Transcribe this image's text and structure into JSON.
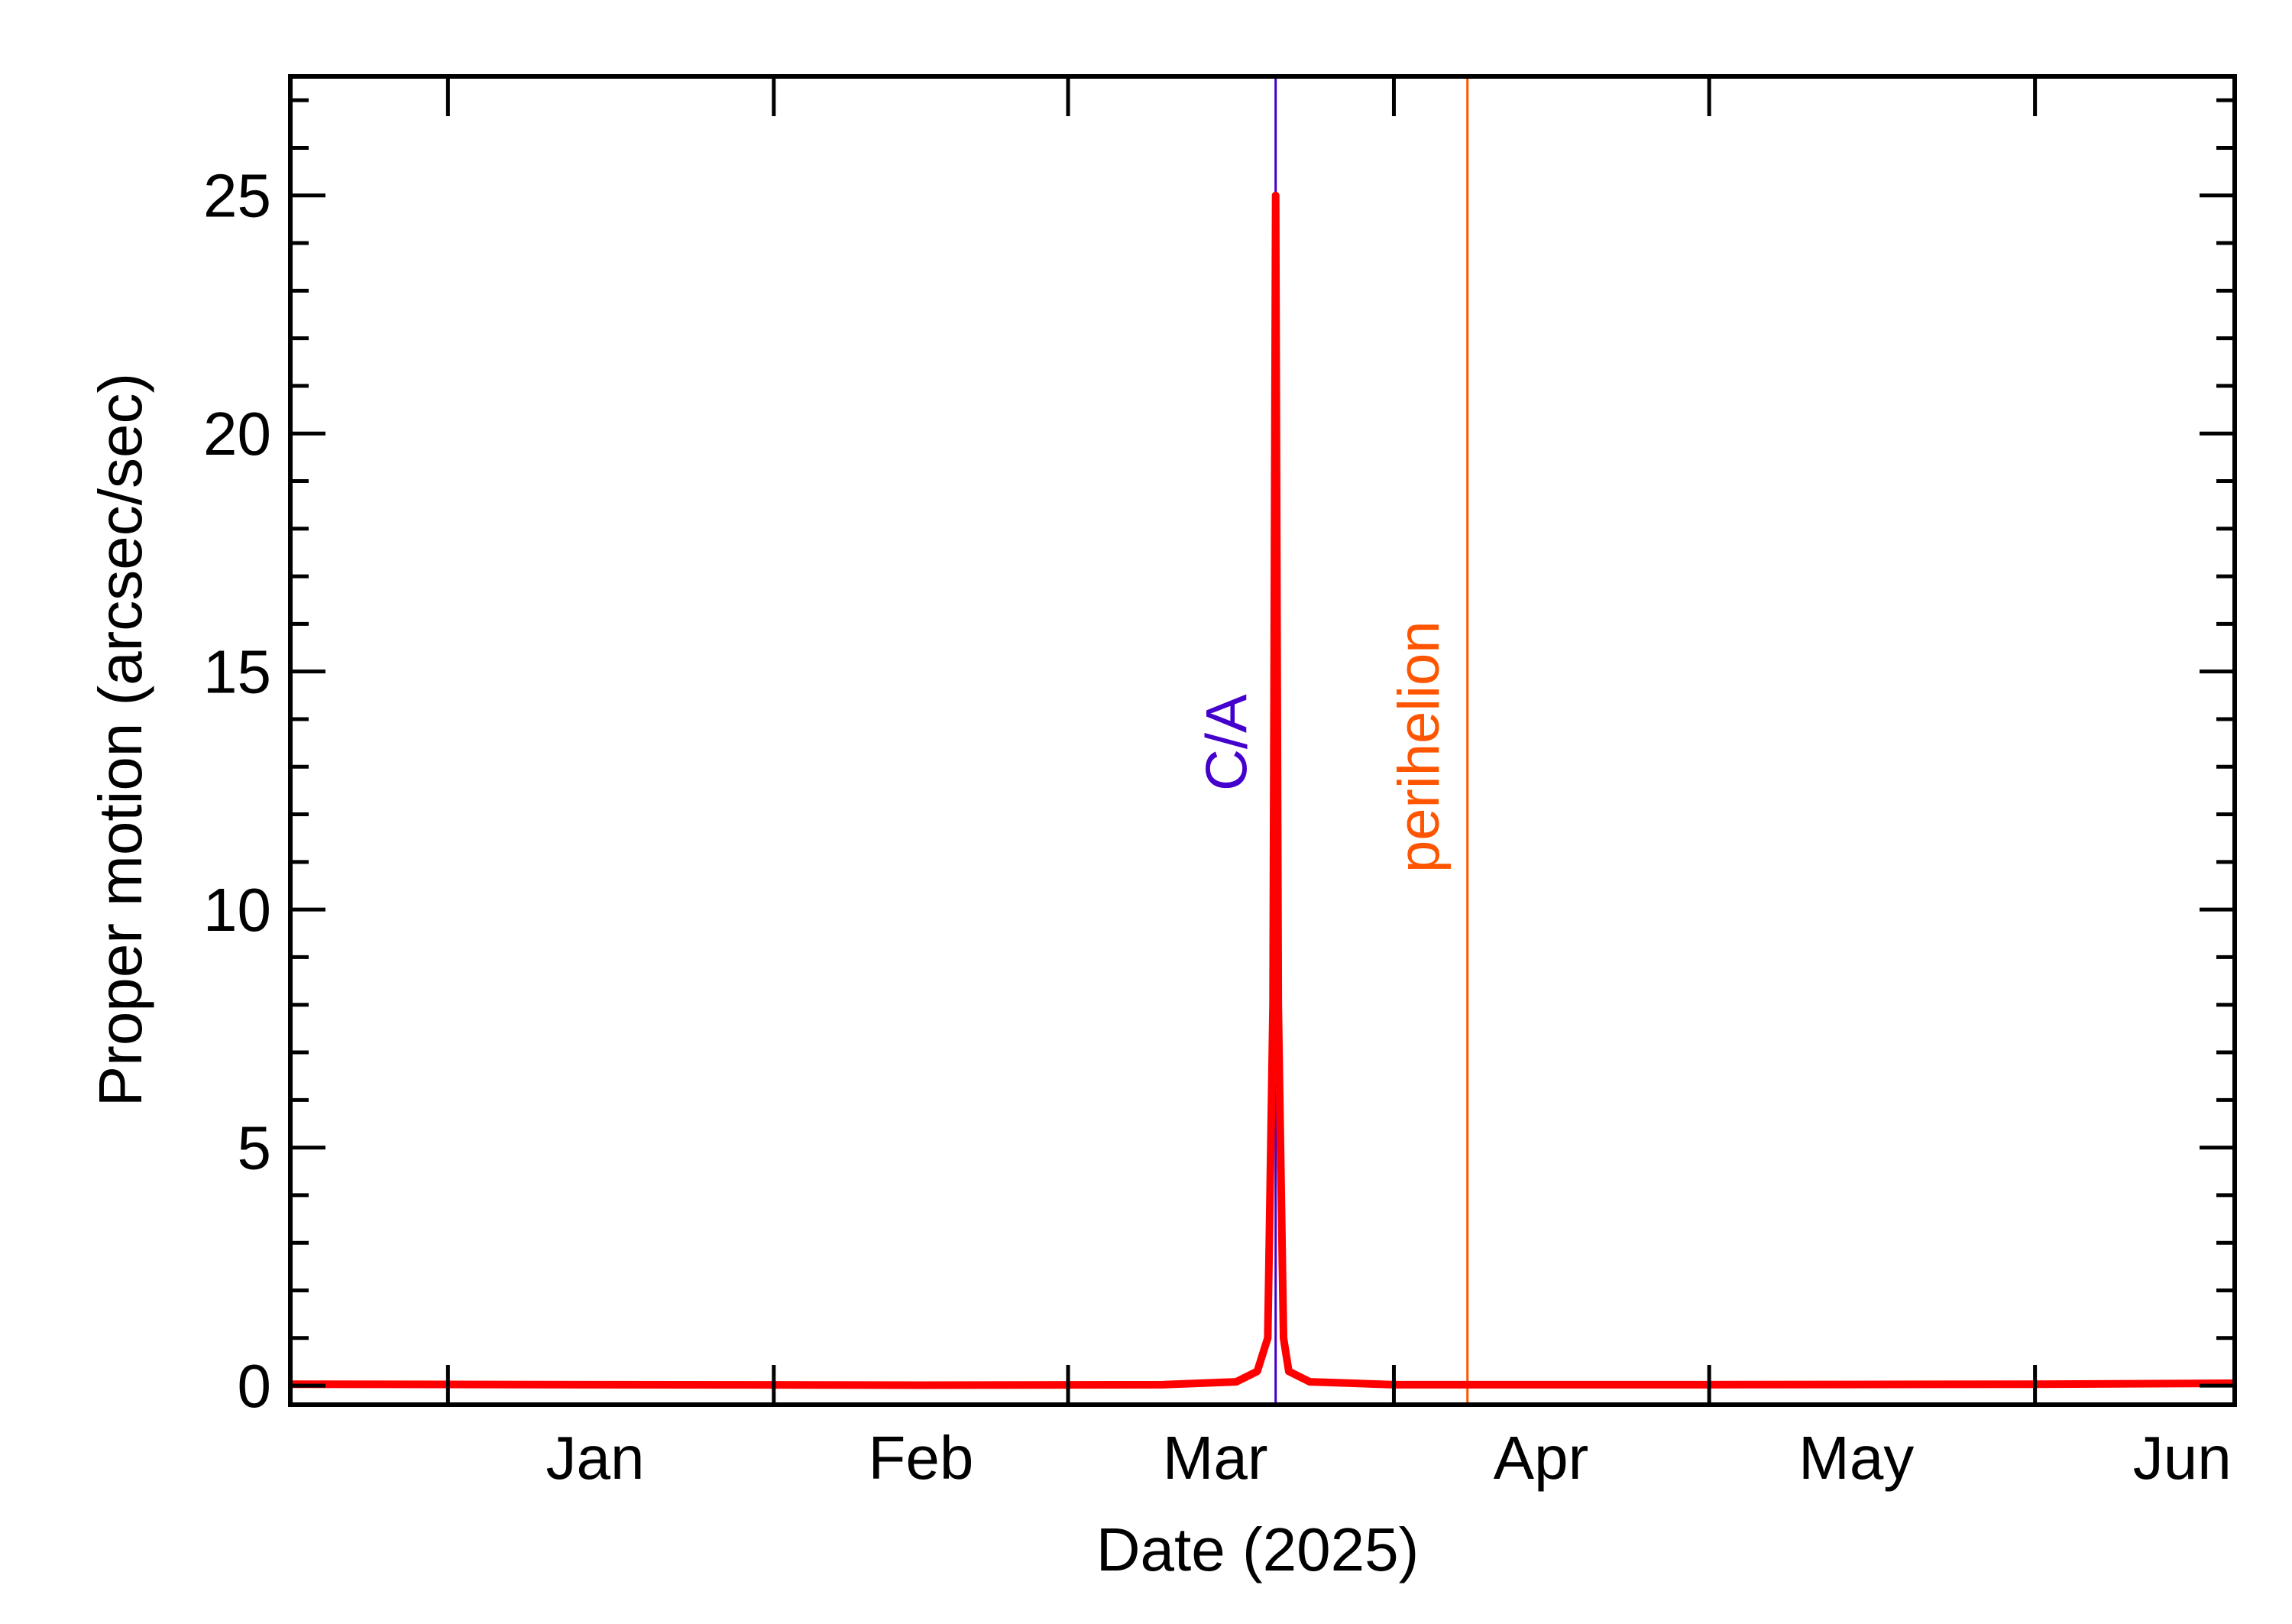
{
  "chart_data": {
    "type": "line",
    "xlabel": "Date (2025)",
    "ylabel": "Proper motion (arcsec/sec)",
    "x_range": [
      "2024-12-17",
      "2025-06-20"
    ],
    "ylim": [
      -0.4,
      27.5
    ],
    "y_ticks": [
      0,
      5,
      10,
      15,
      20,
      25
    ],
    "x_tick_labels": [
      "Jan",
      "Feb",
      "Mar",
      "Apr",
      "May",
      "Jun"
    ],
    "x_ticks": [
      "2025-01-01",
      "2025-02-01",
      "2025-03-01",
      "2025-04-01",
      "2025-05-01",
      "2025-06-01"
    ],
    "x_label_positions": [
      "2025-01-15",
      "2025-02-15",
      "2025-03-15",
      "2025-04-15",
      "2025-05-15",
      "2025-06-15"
    ],
    "grid": false,
    "series": [
      {
        "color": "#ff0000",
        "points": [
          [
            "2024-12-17",
            0.03
          ],
          [
            "2025-01-15",
            0.02
          ],
          [
            "2025-02-15",
            0.01
          ],
          [
            "2025-03-10",
            0.02
          ],
          [
            "2025-03-17",
            0.08
          ],
          [
            "2025-03-19",
            0.3
          ],
          [
            "2025-03-20",
            1.0
          ],
          [
            "2025-03-20T12:00",
            8.0
          ],
          [
            "2025-03-20T18:00",
            25.0
          ],
          [
            "2025-03-21T00:00",
            8.0
          ],
          [
            "2025-03-21T12:00",
            1.0
          ],
          [
            "2025-03-22",
            0.3
          ],
          [
            "2025-03-24",
            0.08
          ],
          [
            "2025-04-01",
            0.02
          ],
          [
            "2025-05-01",
            0.02
          ],
          [
            "2025-06-01",
            0.03
          ],
          [
            "2025-06-20",
            0.05
          ]
        ]
      }
    ],
    "markers": [
      {
        "label": "C/A",
        "date": "2025-03-20T18:00",
        "color": "#4400cc"
      },
      {
        "label": "perihelion",
        "date": "2025-04-08",
        "color": "#ff5500"
      }
    ]
  }
}
